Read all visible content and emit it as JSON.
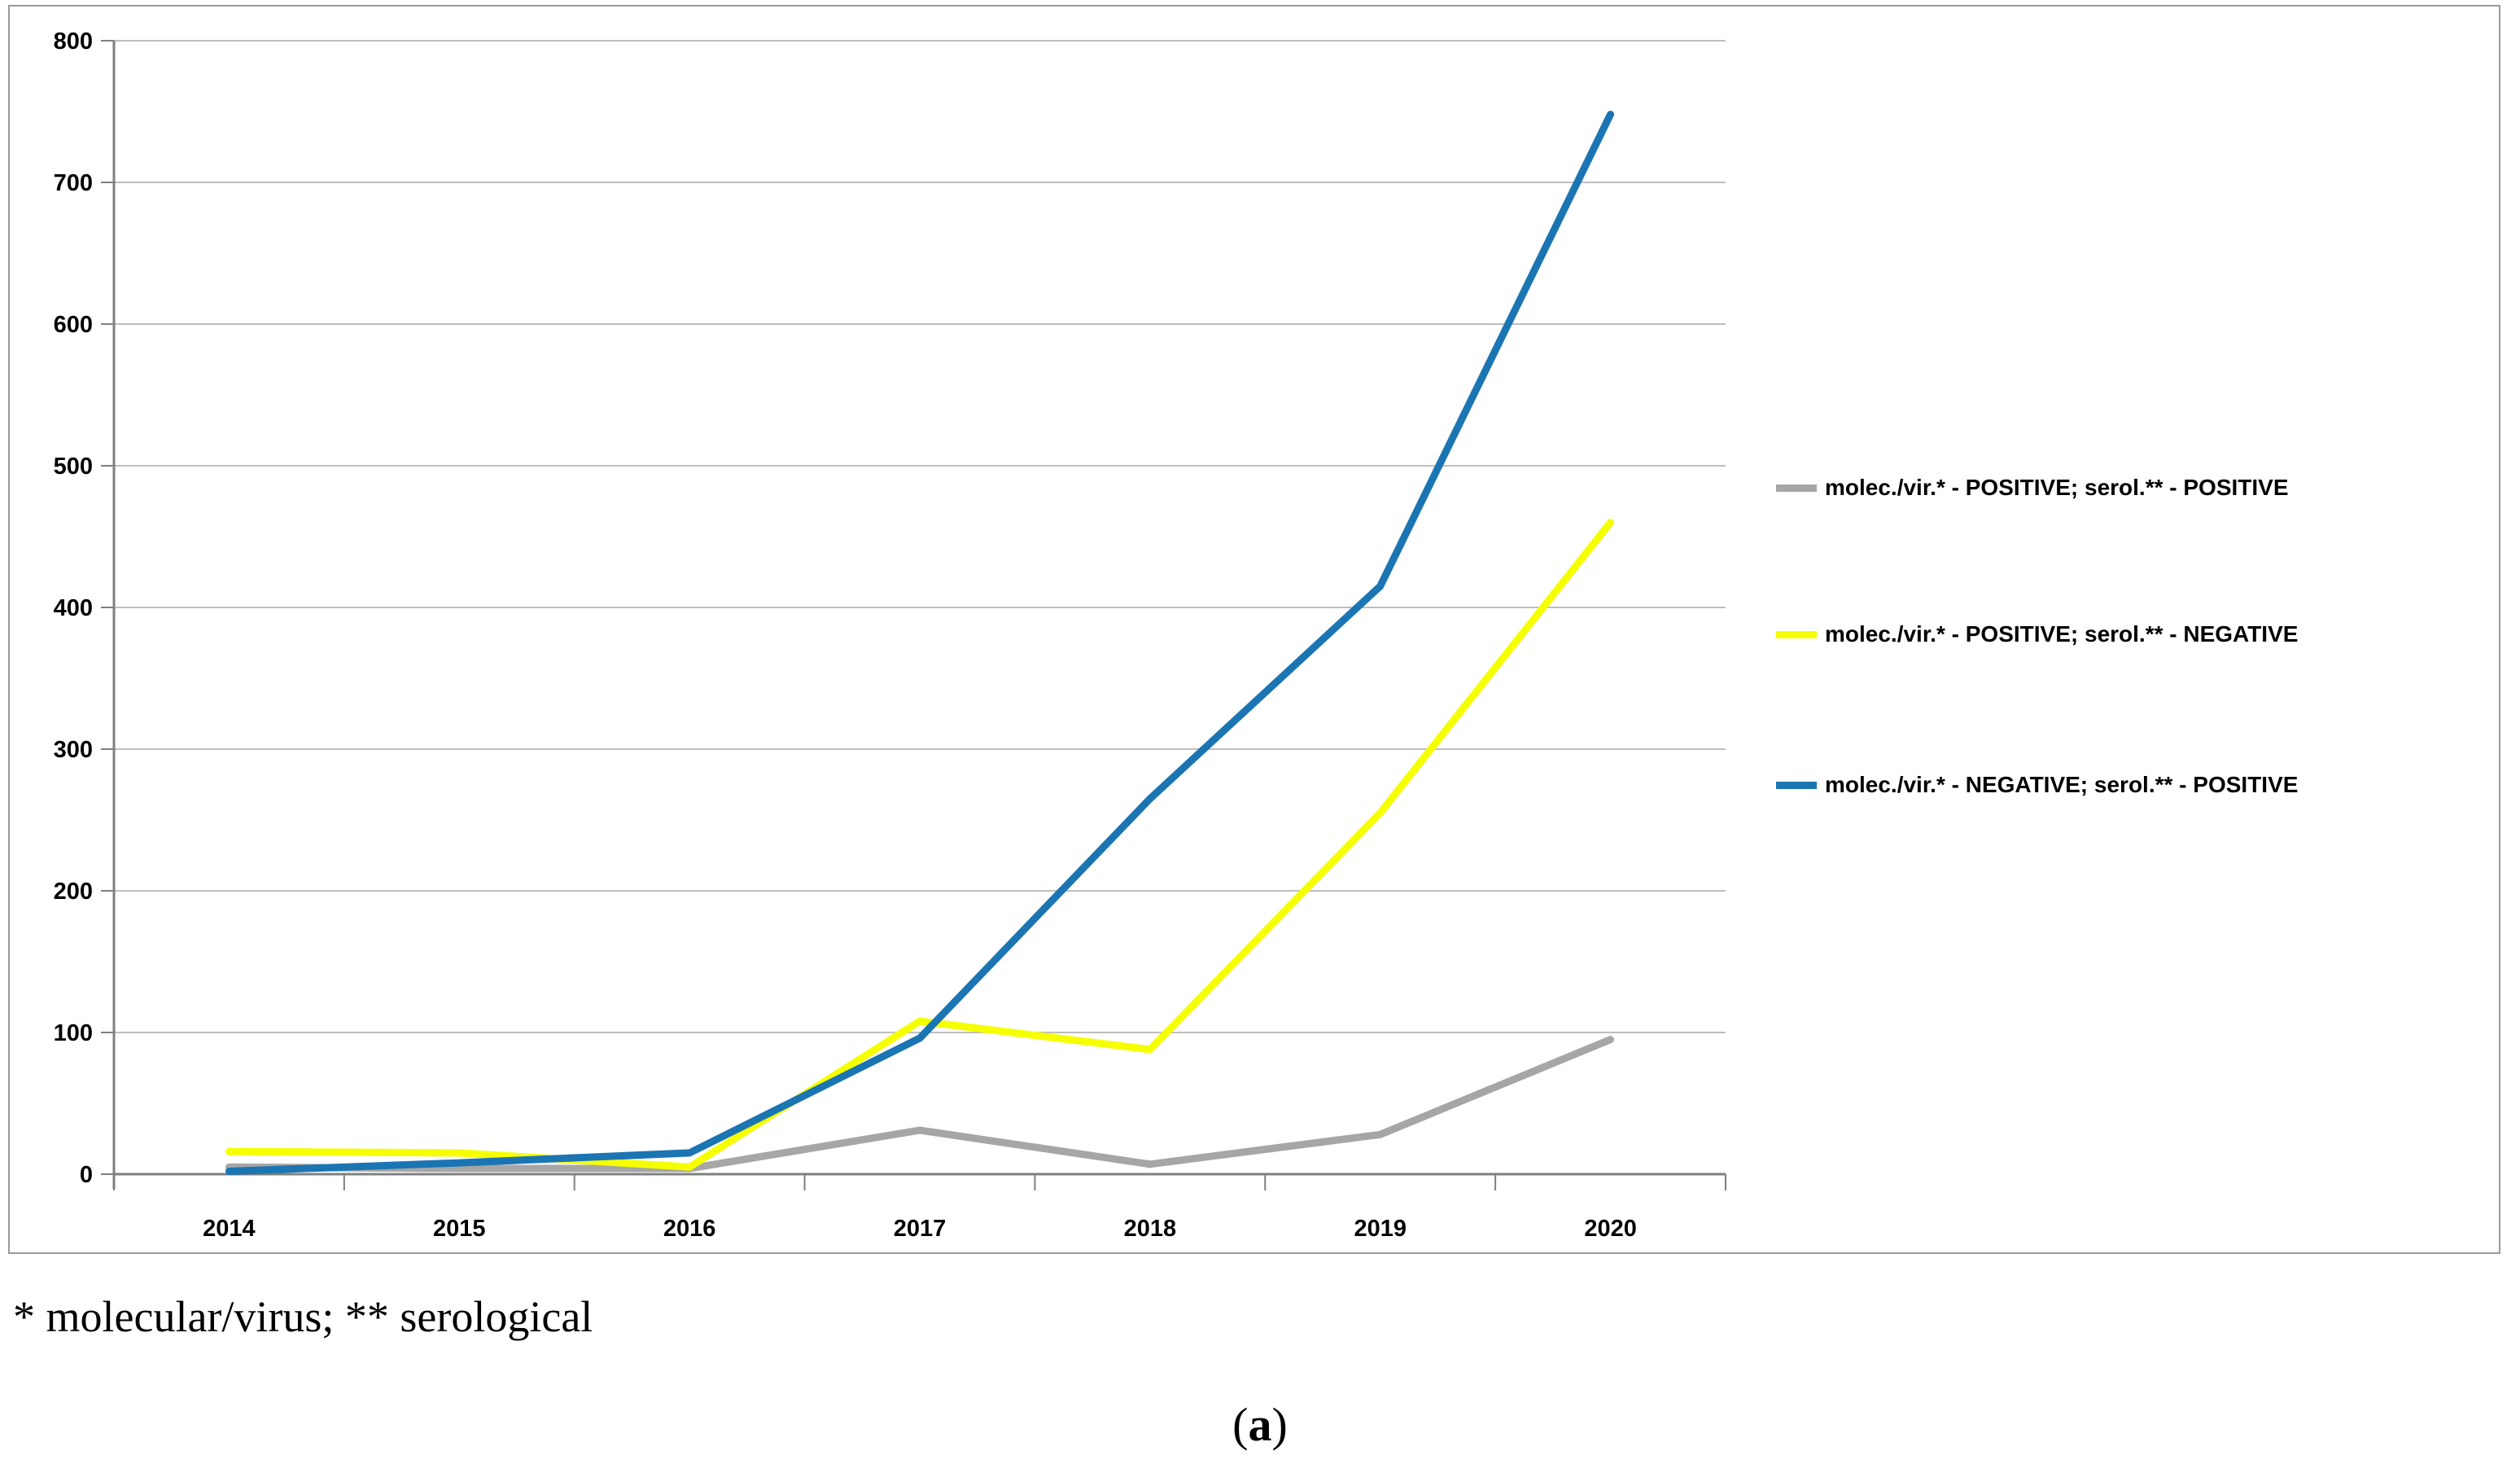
{
  "chart_data": {
    "type": "line",
    "title": "",
    "xlabel": "",
    "ylabel": "",
    "categories": [
      "2014",
      "2015",
      "2016",
      "2017",
      "2018",
      "2019",
      "2020"
    ],
    "series": [
      {
        "name": "molec./vir.* - POSITIVE; serol.** - POSITIVE",
        "color": "#A6A6A6",
        "values": [
          5,
          4,
          4,
          31,
          7,
          28,
          95
        ]
      },
      {
        "name": "molec./vir.* - POSITIVE; serol.** - NEGATIVE",
        "color": "#F5FF00",
        "values": [
          16,
          15,
          5,
          108,
          88,
          255,
          460
        ]
      },
      {
        "name": "molec./vir.* - NEGATIVE; serol.** - POSITIVE",
        "color": "#1B75B3",
        "values": [
          2,
          8,
          15,
          96,
          265,
          415,
          748
        ]
      }
    ],
    "ylim": [
      0,
      800
    ],
    "y_ticks": [
      0,
      100,
      200,
      300,
      400,
      500,
      600,
      700,
      800
    ],
    "grid": true,
    "legend_position": "right"
  },
  "colors": {
    "gridline": "#A8A8A8",
    "axis": "#7F7F7F",
    "border": "#9A9A9A",
    "background": "#FFFFFF",
    "text": "#000000"
  },
  "footnote": "* molecular/virus; ** serological",
  "caption": {
    "open": "(",
    "letter": "a",
    "close": ")"
  }
}
